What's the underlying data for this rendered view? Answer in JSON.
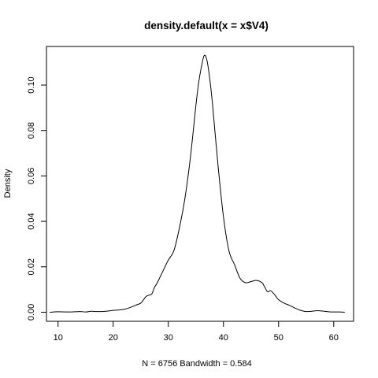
{
  "chart_data": {
    "type": "line",
    "title": "density.default(x = x$V4)",
    "xlabel": "N = 6756   Bandwidth = 0.584",
    "ylabel": "Density",
    "xlim": [
      7.9,
      63.6
    ],
    "ylim": [
      -0.004,
      0.117
    ],
    "x_ticks": [
      10,
      20,
      30,
      40,
      50,
      60
    ],
    "x_tick_labels": [
      "10",
      "20",
      "30",
      "40",
      "50",
      "60"
    ],
    "y_ticks": [
      0.0,
      0.02,
      0.04,
      0.06,
      0.08,
      0.1
    ],
    "y_tick_labels": [
      "0.00",
      "0.02",
      "0.04",
      "0.06",
      "0.08",
      "0.10"
    ],
    "grid": false,
    "legend": "none",
    "series": [
      {
        "color": "#000000",
        "x": [
          8.5,
          10,
          12,
          14,
          15,
          16,
          17,
          18,
          19,
          20,
          21,
          22,
          23,
          24,
          25,
          25.5,
          26,
          26.5,
          27,
          27.5,
          28,
          29,
          30,
          31,
          32,
          33,
          34,
          35,
          35.5,
          36,
          36.5,
          37,
          37.5,
          38,
          39,
          40,
          41,
          42,
          43,
          44,
          45,
          46,
          47,
          47.5,
          48,
          48.5,
          49,
          49.5,
          50,
          51,
          52,
          53,
          54,
          55,
          56,
          57,
          58,
          59,
          60,
          61,
          62
        ],
        "y": [
          0.0,
          0.0002,
          0.0001,
          0.0003,
          0.0001,
          0.0004,
          0.0003,
          0.0003,
          0.0005,
          0.0008,
          0.001,
          0.0013,
          0.002,
          0.003,
          0.004,
          0.0055,
          0.007,
          0.0075,
          0.008,
          0.011,
          0.013,
          0.018,
          0.023,
          0.027,
          0.037,
          0.05,
          0.068,
          0.091,
          0.101,
          0.108,
          0.113,
          0.111,
          0.103,
          0.092,
          0.065,
          0.042,
          0.027,
          0.021,
          0.015,
          0.013,
          0.0135,
          0.014,
          0.013,
          0.011,
          0.009,
          0.0095,
          0.0085,
          0.007,
          0.0055,
          0.004,
          0.003,
          0.0018,
          0.0008,
          0.0003,
          0.0004,
          0.0007,
          0.0005,
          0.0002,
          0.0001,
          0.0001,
          0.0
        ]
      }
    ]
  }
}
